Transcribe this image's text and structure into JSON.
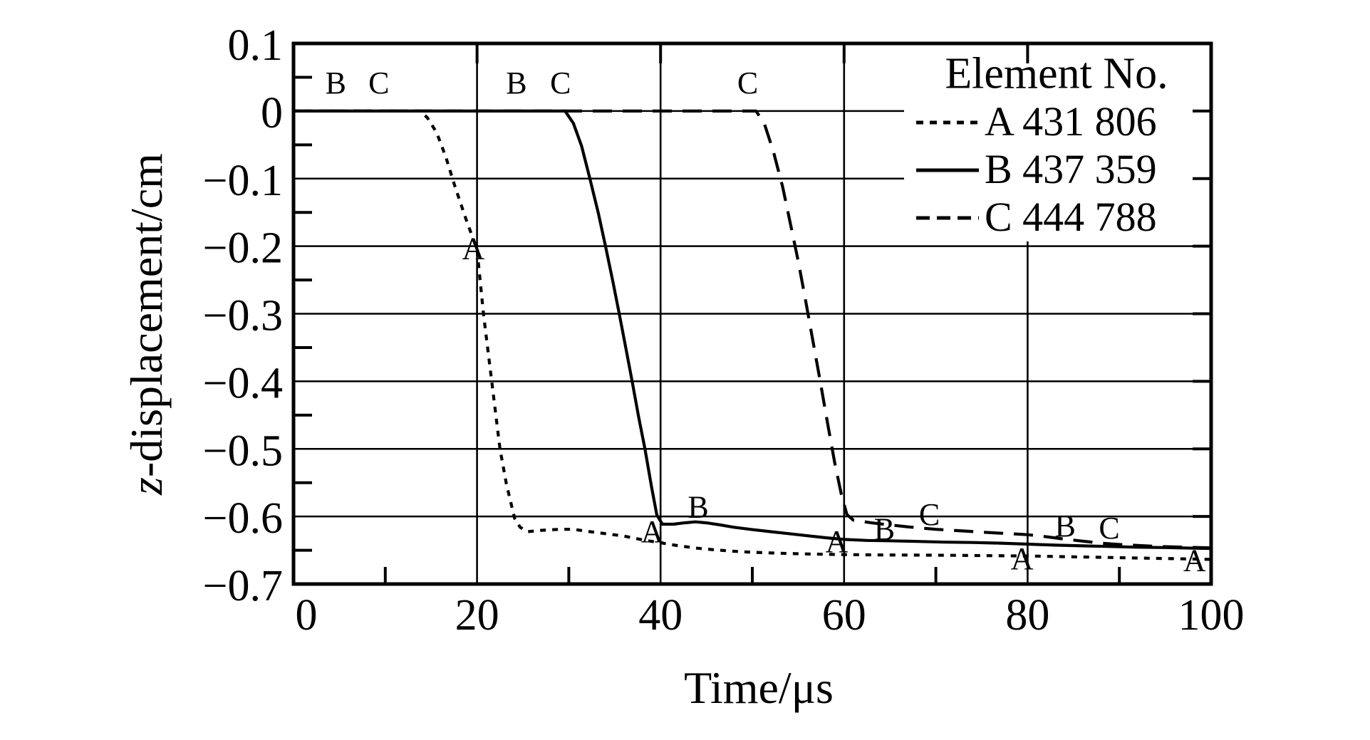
{
  "figure": {
    "xlabel": "Time/μs",
    "ylabel": "z-displacement/cm",
    "ylabel_italic": "z",
    "ylabel_rest": "-displacement/cm"
  },
  "legend": {
    "title": "Element No.",
    "entries": [
      {
        "letter": "A",
        "element_no": "431 806",
        "label": "A 431 806",
        "line_style": "dotted"
      },
      {
        "letter": "B",
        "element_no": "437 359",
        "label": "B 437 359",
        "line_style": "solid"
      },
      {
        "letter": "C",
        "element_no": "444 788",
        "label": "C 444 788",
        "line_style": "dashed"
      }
    ]
  },
  "chart_data": {
    "type": "line",
    "title": "",
    "xlabel": "Time/μs",
    "ylabel": "z-displacement/cm",
    "xlim": [
      0,
      100
    ],
    "ylim": [
      -0.7,
      0.1
    ],
    "grid": true,
    "legend_position": "top-right",
    "x_ticks": [
      0,
      20,
      40,
      60,
      80,
      100
    ],
    "x_tick_labels": [
      "0",
      "20",
      "40",
      "60",
      "80",
      "100"
    ],
    "x_minor_ticks": [
      10,
      30,
      50,
      70,
      90
    ],
    "y_ticks": [
      0.1,
      0,
      -0.1,
      -0.2,
      -0.3,
      -0.4,
      -0.5,
      -0.6,
      -0.7
    ],
    "y_tick_labels": [
      "0.1",
      "0",
      "−0.1",
      "−0.2",
      "−0.3",
      "−0.4",
      "−0.5",
      "−0.6",
      "−0.7"
    ],
    "y_minor_ticks": [
      0.05,
      -0.05,
      -0.15,
      -0.25,
      -0.35,
      -0.45,
      -0.55,
      -0.65
    ],
    "h_gridlines": [
      0,
      -0.1,
      -0.2,
      -0.3,
      -0.4,
      -0.5,
      -0.6
    ],
    "v_gridlines": [
      20,
      40,
      60,
      80
    ],
    "series": [
      {
        "name": "A 431 806",
        "letter": "A",
        "line_style": "dotted",
        "points": [
          [
            0,
            0
          ],
          [
            13.8,
            0
          ],
          [
            14.6,
            -0.01
          ],
          [
            15.6,
            -0.032
          ],
          [
            16.6,
            -0.068
          ],
          [
            17.6,
            -0.112
          ],
          [
            18.8,
            -0.16
          ],
          [
            20,
            -0.205
          ],
          [
            20.7,
            -0.3
          ],
          [
            21.6,
            -0.4
          ],
          [
            22.5,
            -0.5
          ],
          [
            23.2,
            -0.552
          ],
          [
            24.1,
            -0.603
          ],
          [
            24.7,
            -0.616
          ],
          [
            25.5,
            -0.6225
          ],
          [
            27,
            -0.6205
          ],
          [
            29,
            -0.619
          ],
          [
            30.5,
            -0.619
          ],
          [
            32,
            -0.622
          ],
          [
            34,
            -0.6255
          ],
          [
            36,
            -0.629
          ],
          [
            38,
            -0.6345
          ],
          [
            40,
            -0.639
          ],
          [
            42,
            -0.6435
          ],
          [
            44,
            -0.647
          ],
          [
            46,
            -0.6495
          ],
          [
            48,
            -0.6515
          ],
          [
            50,
            -0.653
          ],
          [
            53,
            -0.6545
          ],
          [
            56,
            -0.6555
          ],
          [
            60,
            -0.6565
          ],
          [
            64,
            -0.657
          ],
          [
            68,
            -0.6572
          ],
          [
            72,
            -0.6575
          ],
          [
            76,
            -0.658
          ],
          [
            80,
            -0.6585
          ],
          [
            84,
            -0.6595
          ],
          [
            88,
            -0.6605
          ],
          [
            92,
            -0.6615
          ],
          [
            96,
            -0.6625
          ],
          [
            100,
            -0.6635
          ]
        ]
      },
      {
        "name": "B 437 359",
        "letter": "B",
        "line_style": "solid",
        "points": [
          [
            0,
            0
          ],
          [
            29.6,
            0
          ],
          [
            30.5,
            -0.018
          ],
          [
            31.4,
            -0.052
          ],
          [
            32.3,
            -0.1
          ],
          [
            33.2,
            -0.15
          ],
          [
            34,
            -0.2
          ],
          [
            34.8,
            -0.252
          ],
          [
            35.5,
            -0.3
          ],
          [
            36.2,
            -0.35
          ],
          [
            36.9,
            -0.4
          ],
          [
            37.6,
            -0.452
          ],
          [
            38.3,
            -0.5
          ],
          [
            39,
            -0.555
          ],
          [
            39.6,
            -0.598
          ],
          [
            40.2,
            -0.6115
          ],
          [
            41.4,
            -0.6115
          ],
          [
            42.6,
            -0.6095
          ],
          [
            43.8,
            -0.608
          ],
          [
            45,
            -0.6095
          ],
          [
            46.5,
            -0.6125
          ],
          [
            48,
            -0.616
          ],
          [
            50,
            -0.6195
          ],
          [
            52,
            -0.6225
          ],
          [
            54,
            -0.6255
          ],
          [
            56,
            -0.6285
          ],
          [
            58,
            -0.6315
          ],
          [
            60,
            -0.634
          ],
          [
            62.5,
            -0.6355
          ],
          [
            65,
            -0.636
          ],
          [
            68,
            -0.637
          ],
          [
            71,
            -0.638
          ],
          [
            74,
            -0.6385
          ],
          [
            77,
            -0.6395
          ],
          [
            80,
            -0.641
          ],
          [
            83,
            -0.6425
          ],
          [
            86,
            -0.6435
          ],
          [
            89,
            -0.6445
          ],
          [
            92,
            -0.6455
          ],
          [
            95,
            -0.646
          ],
          [
            100,
            -0.6475
          ]
        ]
      },
      {
        "name": "C 444 788",
        "letter": "C",
        "line_style": "dashed",
        "points": [
          [
            0,
            0
          ],
          [
            50.4,
            0
          ],
          [
            51.3,
            -0.018
          ],
          [
            52.3,
            -0.06
          ],
          [
            53.3,
            -0.112
          ],
          [
            54.2,
            -0.17
          ],
          [
            55,
            -0.222
          ],
          [
            55.8,
            -0.28
          ],
          [
            56.6,
            -0.34
          ],
          [
            57.4,
            -0.4
          ],
          [
            58.2,
            -0.462
          ],
          [
            59,
            -0.522
          ],
          [
            59.7,
            -0.567
          ],
          [
            60.3,
            -0.597
          ],
          [
            61,
            -0.6055
          ],
          [
            62,
            -0.6075
          ],
          [
            63,
            -0.6095
          ],
          [
            65,
            -0.6125
          ],
          [
            67,
            -0.6155
          ],
          [
            70,
            -0.619
          ],
          [
            73,
            -0.6215
          ],
          [
            76,
            -0.624
          ],
          [
            78,
            -0.6255
          ],
          [
            80,
            -0.627
          ],
          [
            82,
            -0.63
          ],
          [
            84,
            -0.6335
          ],
          [
            86,
            -0.6365
          ],
          [
            88,
            -0.6395
          ],
          [
            90,
            -0.6415
          ],
          [
            92,
            -0.643
          ],
          [
            95,
            -0.6448
          ],
          [
            100,
            -0.6465
          ]
        ]
      }
    ],
    "curve_labels": [
      {
        "text": "B",
        "x": 4.6,
        "y": 0.042
      },
      {
        "text": "C",
        "x": 9.3,
        "y": 0.042
      },
      {
        "text": "B",
        "x": 24.3,
        "y": 0.042
      },
      {
        "text": "C",
        "x": 29.1,
        "y": 0.042
      },
      {
        "text": "C",
        "x": 49.5,
        "y": 0.042
      },
      {
        "text": "A",
        "x": 19.6,
        "y": -0.203
      },
      {
        "text": "A",
        "x": 39.1,
        "y": -0.622
      },
      {
        "text": "A",
        "x": 59.2,
        "y": -0.637
      },
      {
        "text": "A",
        "x": 79.4,
        "y": -0.662
      },
      {
        "text": "A",
        "x": 98.2,
        "y": -0.6645
      },
      {
        "text": "B",
        "x": 44.1,
        "y": -0.5855
      },
      {
        "text": "B",
        "x": 64.4,
        "y": -0.6185
      },
      {
        "text": "C",
        "x": 69.3,
        "y": -0.5965
      },
      {
        "text": "B",
        "x": 84.1,
        "y": -0.6135
      },
      {
        "text": "C",
        "x": 88.9,
        "y": -0.6165
      }
    ]
  }
}
